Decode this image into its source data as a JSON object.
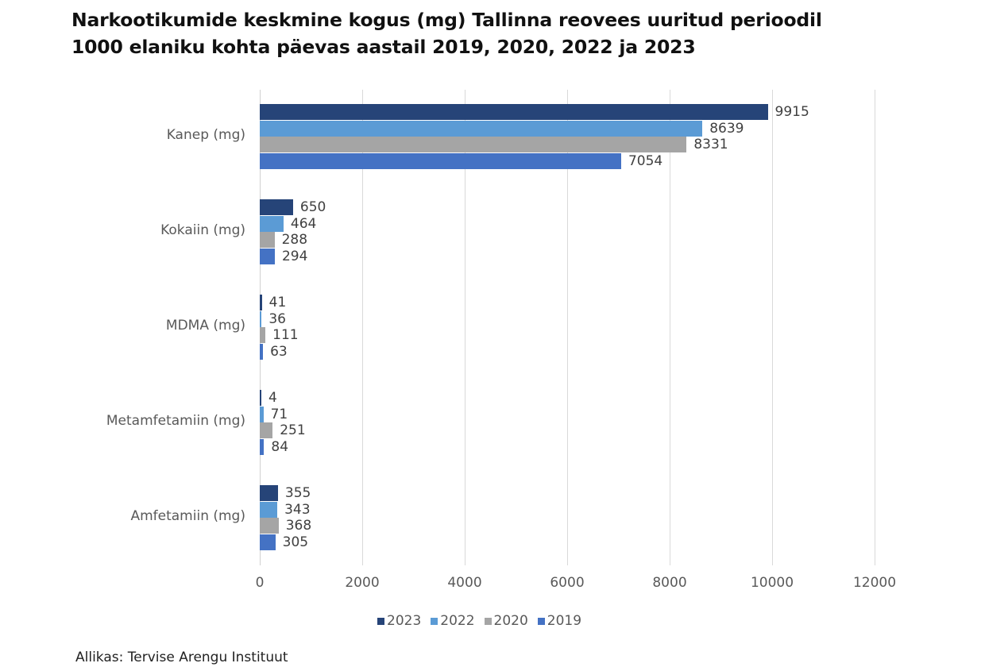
{
  "title_line1": "Narkootikumide keskmine kogus (mg) Tallinna reovees uuritud perioodil",
  "title_line2": "1000 elaniku kohta päevas aastail 2019, 2020, 2022 ja 2023",
  "source": "Allikas: Tervise Arengu Instituut",
  "colors": {
    "2023": "#264478",
    "2022": "#5b9bd5",
    "2020": "#a5a5a5",
    "2019": "#4472c4"
  },
  "chart_data": {
    "type": "bar",
    "orientation": "horizontal",
    "title": "Narkootikumide keskmine kogus (mg) Tallinna reovees uuritud perioodil 1000 elaniku kohta päevas aastail 2019, 2020, 2022 ja 2023",
    "xlabel": "",
    "ylabel": "",
    "xlim": [
      0,
      12000
    ],
    "xticks": [
      "0",
      "2000",
      "4000",
      "6000",
      "8000",
      "10000",
      "12000"
    ],
    "grid": true,
    "legend_position": "bottom",
    "categories": [
      "Kanep (mg)",
      "Kokaiin (mg)",
      "MDMA (mg)",
      "Metamfetamiin (mg)",
      "Amfetamiin (mg)"
    ],
    "series": [
      {
        "name": "2023",
        "color": "#264478",
        "values": [
          9915,
          650,
          41,
          4,
          355
        ]
      },
      {
        "name": "2022",
        "color": "#5b9bd5",
        "values": [
          8639,
          464,
          36,
          71,
          343
        ]
      },
      {
        "name": "2020",
        "color": "#a5a5a5",
        "values": [
          8331,
          288,
          111,
          251,
          368
        ]
      },
      {
        "name": "2019",
        "color": "#4472c4",
        "values": [
          7054,
          294,
          63,
          84,
          305
        ]
      }
    ],
    "source": "Allikas: Tervise Arengu Instituut"
  }
}
